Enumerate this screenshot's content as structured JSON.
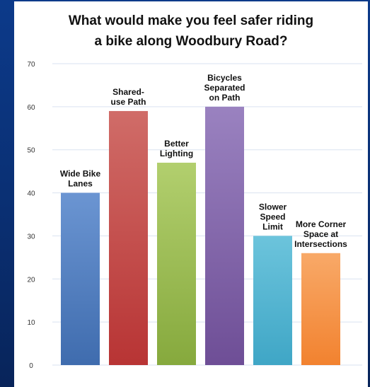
{
  "colors": {
    "background": "#0a2f72",
    "panel": "#ffffff",
    "gridline": "#d9e2f0",
    "tick_text": "#333333",
    "label_text": "#111111"
  },
  "chart_data": {
    "type": "bar",
    "title_lines": [
      "What would make you feel safer riding",
      "a bike along Woodbury Road?"
    ],
    "categories": [
      "Wide Bike Lanes",
      "Shared-use Path",
      "Better Lighting",
      "Bicycles Separated on Path",
      "Slower Speed Limit",
      "More Corner Space at Intersections"
    ],
    "label_lines": [
      [
        "Wide Bike",
        "Lanes"
      ],
      [
        "Shared-",
        "use Path"
      ],
      [
        "Better",
        "Lighting"
      ],
      [
        "Bicycles",
        "Separated",
        "on Path"
      ],
      [
        "Slower",
        "Speed",
        "Limit"
      ],
      [
        "More Corner",
        "Space at",
        "Intersections"
      ]
    ],
    "values": [
      40,
      59,
      47,
      60,
      30,
      26
    ],
    "colors_top": [
      "#6b95d2",
      "#d06c68",
      "#b2cf6e",
      "#9a82c0",
      "#6cc4dc",
      "#f8a968"
    ],
    "colors_bottom": [
      "#3f6cae",
      "#b83434",
      "#86a93d",
      "#6e4e96",
      "#3fa6c6",
      "#f2822f"
    ],
    "ylim": [
      0,
      70
    ],
    "yticks": [
      0,
      10,
      20,
      30,
      40,
      50,
      60,
      70
    ],
    "grid": true,
    "legend": "none"
  }
}
